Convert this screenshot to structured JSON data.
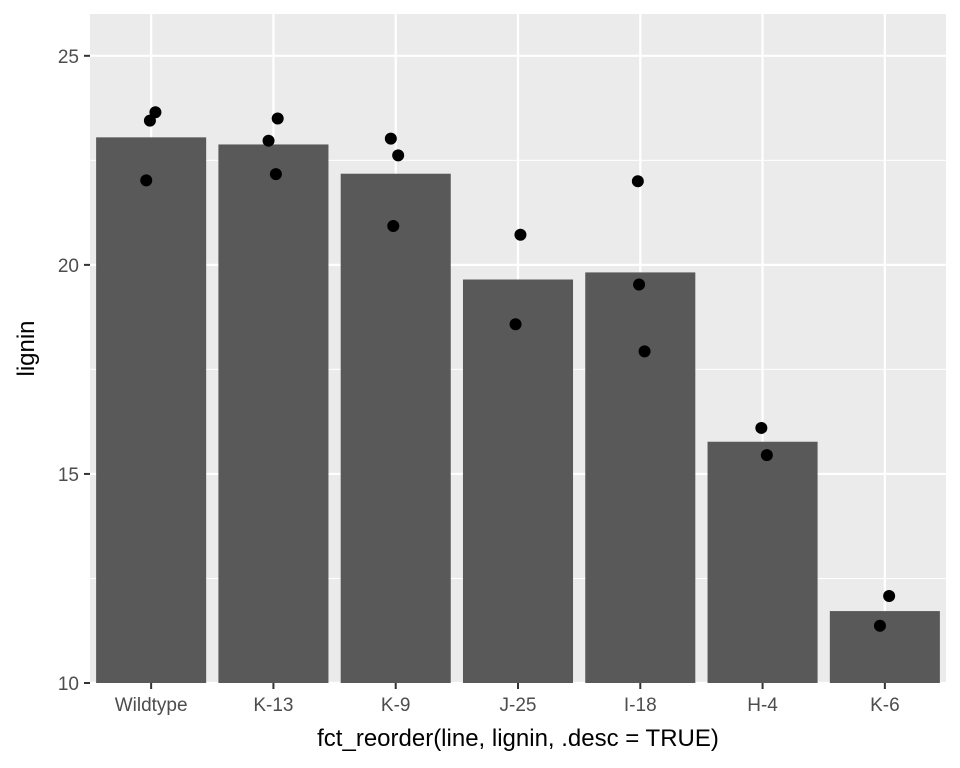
{
  "chart_data": {
    "type": "bar",
    "title": "",
    "xlabel": "fct_reorder(line, lignin, .desc = TRUE)",
    "ylabel": "lignin",
    "categories": [
      "Wildtype",
      "K-13",
      "K-9",
      "J-25",
      "I-18",
      "H-4",
      "K-6"
    ],
    "values": [
      23.05,
      22.88,
      22.18,
      19.65,
      19.82,
      15.77,
      11.72
    ],
    "points": [
      {
        "category": "Wildtype",
        "y": [
          23.45,
          23.65,
          22.02
        ]
      },
      {
        "category": "K-13",
        "y": [
          23.5,
          22.97,
          22.17
        ]
      },
      {
        "category": "K-9",
        "y": [
          23.02,
          22.62,
          20.93
        ]
      },
      {
        "category": "J-25",
        "y": [
          20.72,
          18.58
        ]
      },
      {
        "category": "I-18",
        "y": [
          22.0,
          19.53,
          17.93
        ]
      },
      {
        "category": "H-4",
        "y": [
          16.1,
          15.45
        ]
      },
      {
        "category": "K-6",
        "y": [
          12.08,
          11.37
        ]
      }
    ],
    "ylim": [
      10,
      26.0
    ],
    "yticks": [
      10,
      15,
      20,
      25
    ],
    "grid": true,
    "colors": {
      "panel": "#ebebeb",
      "grid_major": "#ffffff",
      "bar": "#595959",
      "point": "#000000"
    }
  }
}
